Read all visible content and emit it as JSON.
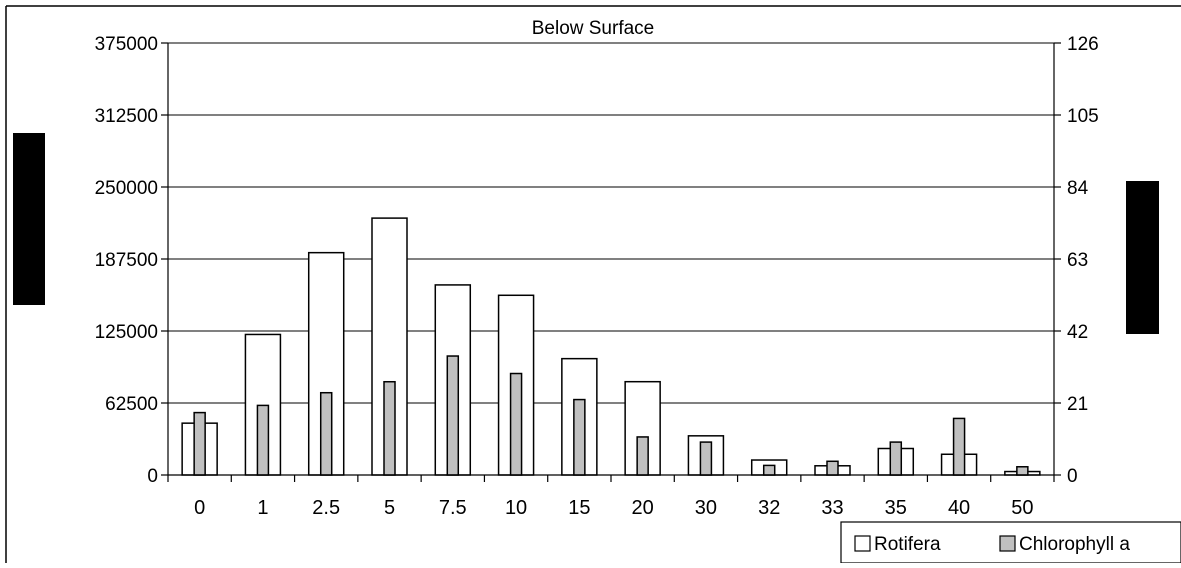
{
  "chart_data": {
    "type": "bar",
    "title": "Below Surface",
    "categories": [
      "0",
      "1",
      "2.5",
      "5",
      "7.5",
      "10",
      "15",
      "20",
      "30",
      "32",
      "33",
      "35",
      "40",
      "50"
    ],
    "series": [
      {
        "name": "Rotifera",
        "axis": "left",
        "color": "#ffffff",
        "values": [
          45000,
          122000,
          193000,
          223000,
          165000,
          156000,
          101000,
          81000,
          34000,
          13000,
          8000,
          23000,
          18000,
          3000
        ]
      },
      {
        "name": "Chlorophyll a",
        "axis": "right",
        "color": "#c0c0c0",
        "values": [
          18.2,
          20.3,
          24.0,
          27.2,
          34.7,
          29.6,
          22.0,
          11.1,
          9.6,
          2.8,
          4.0,
          9.6,
          16.5,
          2.4
        ]
      }
    ],
    "y_left": {
      "lim": [
        0,
        375000
      ],
      "ticks": [
        0,
        62500,
        125000,
        187500,
        250000,
        312500,
        375000
      ]
    },
    "y_right": {
      "lim": [
        0,
        126
      ],
      "ticks": [
        0,
        21,
        42,
        63,
        84,
        105,
        126
      ]
    },
    "grid": true,
    "legend_position": "bottom-right"
  }
}
